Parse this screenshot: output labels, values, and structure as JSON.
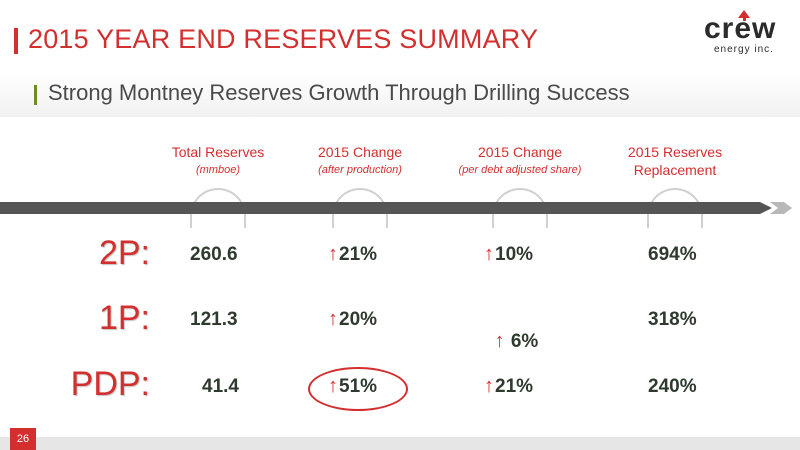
{
  "title": "2015 YEAR END RESERVES SUMMARY",
  "subtitle": "Strong Montney Reserves Growth Through Drilling Success",
  "logo": {
    "name": "crew",
    "tagline": "energy inc."
  },
  "columns": [
    {
      "main": "Total Reserves",
      "sub": "(mmboe)"
    },
    {
      "main": "2015 Change",
      "sub": "(after production)"
    },
    {
      "main": "2015 Change",
      "sub": "(per debt adjusted share)"
    },
    {
      "main": "2015 Reserves",
      "main2": "Replacement"
    }
  ],
  "rows": [
    {
      "label": "2P:",
      "total": "260.6",
      "change": "21%",
      "per_share": "10%",
      "replacement": "694%"
    },
    {
      "label": "1P:",
      "total": "121.3",
      "change": "20%",
      "per_share": " 6%",
      "replacement": "318%"
    },
    {
      "label": "PDP:",
      "total": "41.4",
      "change": "51%",
      "per_share": "21%",
      "replacement": "240%"
    }
  ],
  "up_arrow": "↑",
  "page_number": "26",
  "colors": {
    "accent": "#d32f2f",
    "band": "#555555",
    "subtitle_accent": "#6b8e23"
  }
}
